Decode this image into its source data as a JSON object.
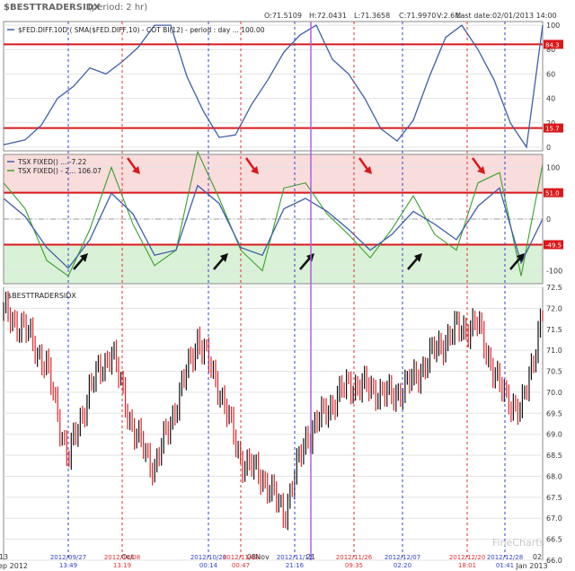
{
  "header": {
    "title": "$BESTTRADERSIDX",
    "period": "(period: 2 hr)",
    "ohlc": {
      "o": "O:71.5109",
      "h": "H:72.0431",
      "l": "L:71.3658",
      "c": "C:71.9970",
      "v": "V:2.6M",
      "last_date": "Last date:02/01/2013 14:00"
    }
  },
  "colors": {
    "blue_line": "#3f5fa8",
    "green_line": "#39a12c",
    "signal_red": "#d9191c",
    "upper_zone": "#f9dcdc",
    "lower_zone": "#d9f1d6",
    "up_candle": "#111111",
    "down_candle": "#e0242a",
    "vline_red": "#e23030",
    "vline_blue": "#3344cc",
    "vline_purple": "#b060e0",
    "grid": "#e3e3e3"
  },
  "chart_data": [
    {
      "type": "line",
      "title": "$FED.DIFF.10D",
      "legend": "$FED.DIFF.10D ( SMA($FED.DIFF,10) - COT BI(12) - period : day ... 100.00",
      "ylim": [
        -3,
        103
      ],
      "y_ticks": [
        0,
        20,
        40,
        60,
        80,
        100
      ],
      "hlines": [
        {
          "value": 84.3,
          "label": "84.3"
        },
        {
          "value": 15.7,
          "label": "15.7"
        }
      ],
      "x": [
        0,
        4,
        7,
        10,
        13,
        16,
        19,
        22,
        25,
        28,
        31,
        34,
        37,
        40,
        43,
        46,
        49,
        52,
        55,
        58,
        61,
        64,
        67,
        70,
        73,
        76,
        79,
        82,
        85,
        88,
        91,
        94,
        97,
        100
      ],
      "values": [
        2,
        6,
        18,
        40,
        50,
        65,
        60,
        70,
        82,
        100,
        100,
        58,
        30,
        8,
        10,
        35,
        55,
        78,
        92,
        100,
        72,
        60,
        40,
        15,
        5,
        22,
        58,
        90,
        100,
        80,
        55,
        20,
        0,
        100
      ]
    },
    {
      "type": "line",
      "title": "TSX FIXED",
      "series": [
        {
          "name": "TSX FIXED() ... -7.22",
          "x": [
            0,
            4,
            8,
            12,
            16,
            20,
            24,
            28,
            32,
            36,
            40,
            44,
            48,
            52,
            56,
            60,
            64,
            68,
            72,
            76,
            80,
            84,
            88,
            92,
            96,
            100
          ],
          "values": [
            40,
            5,
            -55,
            -95,
            -40,
            50,
            10,
            -70,
            -60,
            65,
            30,
            -55,
            -70,
            20,
            40,
            15,
            -20,
            -60,
            -30,
            15,
            -10,
            -40,
            25,
            60,
            -85,
            0
          ]
        },
        {
          "name": "TSX FIXED() - 2... 106.07",
          "x": [
            0,
            4,
            8,
            12,
            16,
            20,
            24,
            28,
            32,
            36,
            40,
            44,
            48,
            52,
            56,
            60,
            64,
            68,
            72,
            76,
            80,
            84,
            88,
            92,
            96,
            100
          ],
          "values": [
            70,
            20,
            -80,
            -110,
            -20,
            100,
            -10,
            -90,
            -60,
            130,
            40,
            -60,
            -100,
            60,
            70,
            10,
            -30,
            -75,
            -20,
            45,
            -30,
            -60,
            70,
            90,
            -110,
            106
          ]
        }
      ],
      "ylim": [
        -125,
        125
      ],
      "y_ticks": [
        100,
        50,
        0,
        -50,
        -100
      ],
      "hlines": [
        {
          "value": 51.0,
          "label": "51.0"
        },
        {
          "value": -49.5,
          "label": "-49.5"
        }
      ]
    },
    {
      "type": "candlestick",
      "title": "$BESTTRADERSIDX",
      "ylim": [
        66,
        72.5
      ],
      "y_ticks": [
        66.0,
        66.5,
        67.0,
        67.5,
        68.0,
        68.5,
        69.0,
        69.5,
        70.0,
        70.5,
        71.0,
        71.5,
        72.0,
        72.5
      ],
      "x": [
        0,
        4,
        8,
        12,
        16,
        20,
        24,
        28,
        32,
        36,
        40,
        44,
        48,
        52,
        56,
        60,
        64,
        68,
        72,
        76,
        80,
        84,
        88,
        92,
        96,
        100
      ],
      "values": [
        71.9,
        71.5,
        70.6,
        68.4,
        70.1,
        71.0,
        69.1,
        68.2,
        69.7,
        71.3,
        70.1,
        68.4,
        68.0,
        67.1,
        68.9,
        69.6,
        70.2,
        70.1,
        69.9,
        70.3,
        71.0,
        71.5,
        71.6,
        70.1,
        69.5,
        71.9
      ]
    }
  ],
  "x_axis": {
    "labels": [
      {
        "text": "13",
        "sub": "Sep 2012",
        "x": 0
      },
      {
        "text": "Oct",
        "x": 23
      },
      {
        "text": "08",
        "x": 46
      },
      {
        "text": "Nov",
        "x": 48
      },
      {
        "text": "21",
        "x": 57
      },
      {
        "text": "02",
        "sub": "Jan 2013",
        "x": 99
      }
    ],
    "markers": [
      {
        "date": "2012/09/27",
        "time": "13:49",
        "x": 12,
        "color": "blue"
      },
      {
        "date": "2012/10/08",
        "time": "13:19",
        "x": 22,
        "color": "red"
      },
      {
        "date": "2012/10/26",
        "time": "00:14",
        "x": 38,
        "color": "blue"
      },
      {
        "date": "2012/11/03",
        "time": "00:47",
        "x": 44,
        "color": "red"
      },
      {
        "date": "2012/11/12",
        "time": "21:16",
        "x": 54,
        "color": "blue"
      },
      {
        "date": "2012/11/26",
        "time": "09:35",
        "x": 65,
        "color": "red"
      },
      {
        "date": "2012/12/07",
        "time": "02:20",
        "x": 74,
        "color": "blue"
      },
      {
        "date": "2012/12/20",
        "time": "18:01",
        "x": 86,
        "color": "red"
      },
      {
        "date": "2012/12/28",
        "time": "01:41",
        "x": 93,
        "color": "blue"
      }
    ]
  },
  "watermark": "FineCharts"
}
